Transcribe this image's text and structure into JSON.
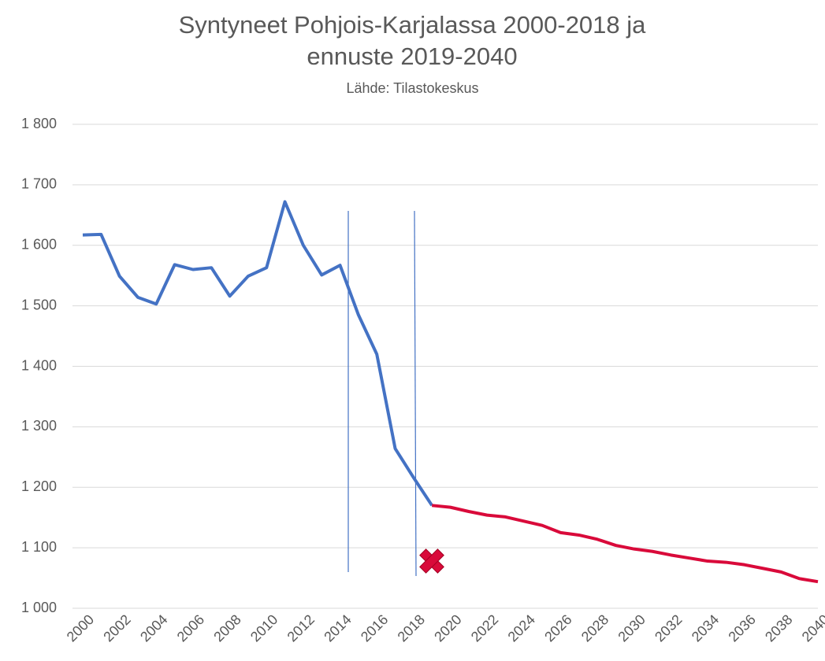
{
  "chart_data": {
    "type": "line",
    "title": "Syntyneet Pohjois-Karjalassa 2000-2018 ja ennuste 2019-2040",
    "subtitle": "Lähde: Tilastokeskus",
    "x": [
      2000,
      2001,
      2002,
      2003,
      2004,
      2005,
      2006,
      2007,
      2008,
      2009,
      2010,
      2011,
      2012,
      2013,
      2014,
      2015,
      2016,
      2017,
      2018,
      2019,
      2020,
      2021,
      2022,
      2023,
      2024,
      2025,
      2026,
      2027,
      2028,
      2029,
      2030,
      2031,
      2032,
      2033,
      2034,
      2035,
      2036,
      2037,
      2038,
      2039,
      2040
    ],
    "series": [
      {
        "color": "#4472c4",
        "values": [
          1617,
          1618,
          1549,
          1514,
          1503,
          1568,
          1560,
          1563,
          1516,
          1549,
          1563,
          1672,
          1600,
          1551,
          1567,
          1485,
          1420,
          1264,
          1216,
          1170,
          null,
          null,
          null,
          null,
          null,
          null,
          null,
          null,
          null,
          null,
          null,
          null,
          null,
          null,
          null,
          null,
          null,
          null,
          null,
          null,
          null
        ]
      },
      {
        "color": "#d90a3a",
        "values": [
          null,
          null,
          null,
          null,
          null,
          null,
          null,
          null,
          null,
          null,
          null,
          null,
          null,
          null,
          null,
          null,
          null,
          null,
          null,
          1170,
          1167,
          1160,
          1154,
          1151,
          1144,
          1137,
          1125,
          1121,
          1114,
          1104,
          1098,
          1094,
          1088,
          1083,
          1078,
          1076,
          1072,
          1066,
          1060,
          1049,
          1044
        ]
      }
    ],
    "xlim": [
      2000,
      2040
    ],
    "xticks": [
      2000,
      2002,
      2004,
      2006,
      2008,
      2010,
      2012,
      2014,
      2016,
      2018,
      2020,
      2022,
      2024,
      2026,
      2028,
      2030,
      2032,
      2034,
      2036,
      2038,
      2040
    ],
    "ylim": [
      1000,
      1800
    ],
    "yticks": [
      {
        "value": 1000,
        "label": "1 000"
      },
      {
        "value": 1100,
        "label": "1 100"
      },
      {
        "value": 1200,
        "label": "1 200"
      },
      {
        "value": 1300,
        "label": "1 300"
      },
      {
        "value": 1400,
        "label": "1 400"
      },
      {
        "value": 1500,
        "label": "1 500"
      },
      {
        "value": 1600,
        "label": "1 600"
      },
      {
        "value": 1700,
        "label": "1 700"
      },
      {
        "value": 1800,
        "label": "1 800"
      }
    ],
    "grid": true
  }
}
